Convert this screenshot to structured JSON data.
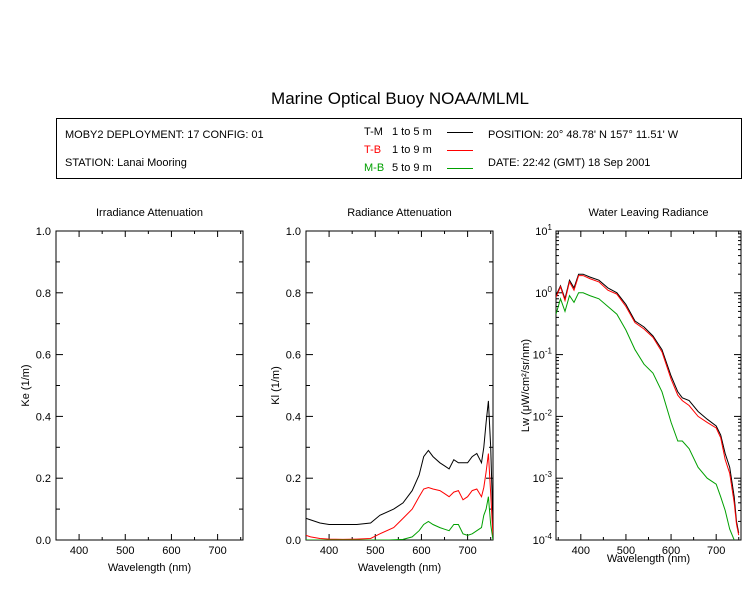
{
  "title": "Marine Optical Buoy NOAA/MLML",
  "info": {
    "deployment": "MOBY2 DEPLOYMENT: 17 CONFIG: 01",
    "station": "STATION: Lanai Mooring",
    "position": "POSITION: 20° 48.78' N   157° 11.51' W",
    "date": "DATE: 22:42 (GMT) 18 Sep 2001"
  },
  "legend": [
    {
      "code": "T-M",
      "range": "1 to 5  m",
      "color": "#000000"
    },
    {
      "code": "T-B",
      "range": "1 to 9  m",
      "color": "#ff0000"
    },
    {
      "code": "M-B",
      "range": "5 to 9  m",
      "color": "#00a000"
    }
  ],
  "chart_data": [
    {
      "type": "line",
      "title": "Irradiance Attenuation",
      "xlabel": "Wavelength (nm)",
      "ylabel": "Ke  (1/m)",
      "xlim": [
        350,
        755
      ],
      "ylim": [
        0,
        1
      ],
      "xticks": [
        400,
        500,
        600,
        700
      ],
      "yticks": [
        "0.0",
        "0.2",
        "0.4",
        "0.6",
        "0.8",
        "1.0"
      ],
      "series": []
    },
    {
      "type": "line",
      "title": "Radiance Attenuation",
      "xlabel": "Wavelength (nm)",
      "ylabel": "Kl  (1/m)",
      "xlim": [
        350,
        755
      ],
      "ylim": [
        0,
        1
      ],
      "xticks": [
        400,
        500,
        600,
        700
      ],
      "yticks": [
        "0.0",
        "0.2",
        "0.4",
        "0.6",
        "0.8",
        "1.0"
      ],
      "series": [
        {
          "name": "T-M",
          "color": "#000000",
          "x": [
            350,
            360,
            380,
            400,
            430,
            460,
            490,
            510,
            540,
            560,
            580,
            595,
            605,
            615,
            625,
            640,
            650,
            660,
            670,
            680,
            690,
            700,
            710,
            720,
            730,
            735,
            740,
            745,
            750,
            755
          ],
          "y": [
            0.07,
            0.065,
            0.055,
            0.05,
            0.05,
            0.05,
            0.055,
            0.08,
            0.1,
            0.12,
            0.16,
            0.21,
            0.27,
            0.29,
            0.27,
            0.25,
            0.24,
            0.23,
            0.26,
            0.25,
            0.25,
            0.25,
            0.27,
            0.28,
            0.25,
            0.3,
            0.38,
            0.45,
            0.3,
            0.05
          ]
        },
        {
          "name": "T-B",
          "color": "#ff0000",
          "x": [
            350,
            360,
            380,
            400,
            430,
            460,
            490,
            510,
            540,
            560,
            580,
            595,
            605,
            615,
            625,
            640,
            650,
            660,
            670,
            680,
            690,
            700,
            710,
            720,
            730,
            735,
            740,
            745,
            750,
            755
          ],
          "y": [
            0.015,
            0.01,
            0.005,
            0.003,
            0.002,
            0.003,
            0.005,
            0.02,
            0.04,
            0.07,
            0.1,
            0.14,
            0.165,
            0.17,
            0.165,
            0.16,
            0.15,
            0.14,
            0.155,
            0.16,
            0.13,
            0.14,
            0.16,
            0.165,
            0.14,
            0.17,
            0.22,
            0.28,
            0.15,
            0.01
          ]
        },
        {
          "name": "M-B",
          "color": "#00a000",
          "x": [
            350,
            380,
            420,
            460,
            500,
            530,
            560,
            580,
            595,
            605,
            615,
            625,
            640,
            650,
            660,
            670,
            680,
            690,
            700,
            710,
            720,
            730,
            735,
            740,
            745,
            750,
            755
          ],
          "y": [
            0.0,
            0.0,
            0.0,
            0.0,
            0.0,
            0.0,
            0.002,
            0.01,
            0.03,
            0.05,
            0.06,
            0.05,
            0.04,
            0.035,
            0.03,
            0.05,
            0.05,
            0.02,
            0.015,
            0.02,
            0.03,
            0.04,
            0.08,
            0.1,
            0.14,
            0.05,
            0.0
          ]
        }
      ]
    },
    {
      "type": "line",
      "title": "Water Leaving Radiance",
      "xlabel": "Wavelength (nm)",
      "ylabel": "Lw  (μW/cm²/sr/nm)",
      "yscale": "log",
      "xlim": [
        345,
        755
      ],
      "ylim": [
        0.0001,
        10
      ],
      "xticks": [
        400,
        500,
        600,
        700
      ],
      "yticks": [
        {
          "base": "10",
          "exp": "1"
        },
        {
          "base": "10",
          "exp": "0"
        },
        {
          "base": "10",
          "exp": "-1"
        },
        {
          "base": "10",
          "exp": "-2"
        },
        {
          "base": "10",
          "exp": "-3"
        },
        {
          "base": "10",
          "exp": "-4"
        }
      ],
      "series": [
        {
          "name": "T-M",
          "color": "#000000",
          "x": [
            345,
            355,
            365,
            375,
            385,
            395,
            405,
            420,
            440,
            460,
            480,
            500,
            520,
            540,
            560,
            580,
            600,
            615,
            625,
            640,
            660,
            680,
            700,
            710,
            720,
            730,
            740,
            745,
            750
          ],
          "y": [
            0.9,
            1.3,
            0.8,
            1.6,
            1.2,
            2.0,
            2.0,
            1.8,
            1.6,
            1.2,
            1.0,
            0.65,
            0.35,
            0.28,
            0.2,
            0.12,
            0.045,
            0.025,
            0.02,
            0.018,
            0.012,
            0.009,
            0.007,
            0.005,
            0.0025,
            0.0015,
            0.0005,
            0.0002,
            0.00013
          ]
        },
        {
          "name": "T-B",
          "color": "#ff0000",
          "x": [
            345,
            355,
            365,
            375,
            385,
            395,
            405,
            420,
            440,
            460,
            480,
            500,
            520,
            540,
            560,
            580,
            600,
            615,
            625,
            640,
            660,
            680,
            700,
            710,
            720,
            730,
            740,
            745,
            750
          ],
          "y": [
            0.85,
            1.25,
            0.75,
            1.5,
            1.1,
            1.9,
            1.9,
            1.7,
            1.5,
            1.1,
            0.95,
            0.6,
            0.33,
            0.26,
            0.19,
            0.11,
            0.04,
            0.022,
            0.018,
            0.015,
            0.01,
            0.008,
            0.0065,
            0.0045,
            0.002,
            0.0012,
            0.0004,
            0.00018,
            0.00012
          ]
        },
        {
          "name": "M-B",
          "color": "#00a000",
          "x": [
            345,
            355,
            365,
            375,
            385,
            395,
            405,
            420,
            440,
            460,
            480,
            500,
            520,
            540,
            560,
            580,
            600,
            615,
            625,
            640,
            660,
            680,
            700,
            710,
            720,
            730,
            740
          ],
          "y": [
            0.45,
            0.8,
            0.5,
            0.9,
            0.7,
            1.0,
            1.0,
            0.9,
            0.8,
            0.6,
            0.45,
            0.25,
            0.12,
            0.07,
            0.05,
            0.025,
            0.008,
            0.004,
            0.004,
            0.003,
            0.0015,
            0.001,
            0.0008,
            0.0005,
            0.0003,
            0.00015,
            0.0001
          ]
        }
      ]
    }
  ]
}
